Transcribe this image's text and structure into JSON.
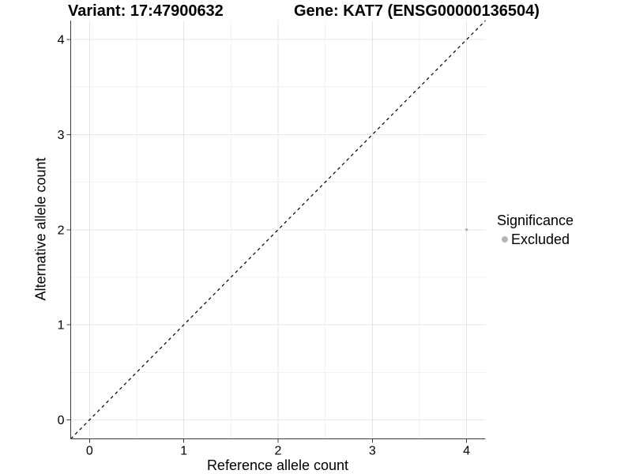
{
  "chart_data": {
    "type": "scatter",
    "title_left": "Variant: 17:47900632",
    "title_right": "Gene: KAT7 (ENSG00000136504)",
    "xlabel": "Reference allele count",
    "ylabel": "Alternative allele count",
    "xlim": [
      -0.2,
      4.2
    ],
    "ylim": [
      -0.2,
      4.2
    ],
    "x_ticks": [
      0,
      1,
      2,
      3,
      4
    ],
    "y_ticks": [
      0,
      1,
      2,
      3,
      4
    ],
    "x_minor_ticks": [
      0.5,
      1.5,
      2.5,
      3.5
    ],
    "y_minor_ticks": [
      0.5,
      1.5,
      2.5,
      3.5
    ],
    "grid": true,
    "points": [
      {
        "x": 4,
        "y": 2,
        "series": "Excluded"
      }
    ],
    "reference_line": {
      "equation": "y = x",
      "style": "dashed",
      "color": "#000000"
    },
    "legend": {
      "title": "Significance",
      "position": "right",
      "items": [
        {
          "label": "Excluded",
          "color": "#b5b5b5"
        }
      ]
    },
    "colors": {
      "background": "#ffffff",
      "grid_major": "#e6e6e6",
      "grid_minor": "#f2f2f2",
      "axis": "#3c3c3c",
      "tick_label": "#000000",
      "point": "#b5b5b5"
    }
  }
}
